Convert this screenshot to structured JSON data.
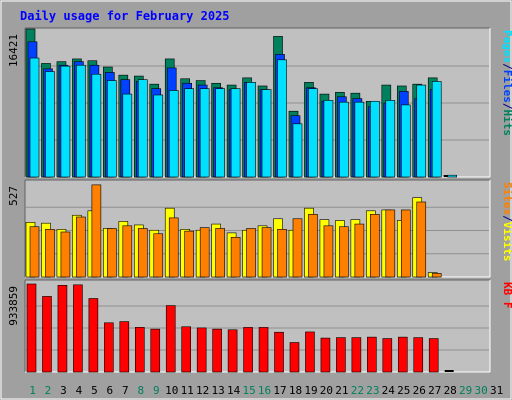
{
  "page": {
    "title": "Daily usage for February 2025"
  },
  "colors": {
    "frame": "#a0a0a0",
    "panel": "#c0c0c0",
    "hits": "#00805c",
    "files": "#0040ff",
    "pages": "#00e0ff",
    "visits": "#ffff00",
    "sites": "#ff8000",
    "kbytes": "#ff0000",
    "title_text": "#0000ff",
    "weekday_label": "#000080",
    "weekend_label": "#00805c"
  },
  "chart_data": [
    {
      "type": "bar",
      "panel": "top",
      "ymax_label": "16421",
      "side_label_parts": [
        {
          "text": "Pages",
          "color_key": "pages"
        },
        {
          "text": "/",
          "color_key": "weekday_label"
        },
        {
          "text": "Files",
          "color_key": "files"
        },
        {
          "text": "/",
          "color_key": "weekday_label"
        },
        {
          "text": "Hits",
          "color_key": "hits"
        }
      ],
      "ylim": [
        0,
        16421
      ],
      "series": [
        {
          "name": "Hits",
          "color_key": "hits",
          "values": [
            16421,
            12600,
            12800,
            13100,
            12900,
            12200,
            11300,
            11200,
            10300,
            13100,
            10900,
            10700,
            10400,
            10200,
            11000,
            10100,
            15600,
            7300,
            10500,
            9200,
            9400,
            9300,
            8400,
            10200,
            10100,
            10300,
            11000,
            0
          ]
        },
        {
          "name": "Files",
          "color_key": "files",
          "values": [
            15000,
            12000,
            12400,
            12800,
            12400,
            11600,
            10800,
            10600,
            9800,
            12100,
            10400,
            10200,
            9900,
            9700,
            10500,
            9700,
            13600,
            6800,
            9900,
            8400,
            8900,
            8700,
            7800,
            8200,
            9500,
            8700,
            9700,
            0
          ]
        },
        {
          "name": "Pages",
          "color_key": "pages",
          "values": [
            13200,
            11700,
            12300,
            12400,
            11400,
            10700,
            9200,
            10800,
            9100,
            9600,
            9800,
            9800,
            9800,
            9800,
            10500,
            9700,
            13000,
            5900,
            9800,
            8500,
            8300,
            8300,
            8400,
            8500,
            8000,
            10200,
            10600,
            200
          ]
        }
      ]
    },
    {
      "type": "bar",
      "panel": "middle",
      "ymax_label": "527",
      "side_label_parts": [
        {
          "text": "Sites",
          "color_key": "sites"
        },
        {
          "text": "/",
          "color_key": "weekday_label"
        },
        {
          "text": "Visits",
          "color_key": "visits"
        }
      ],
      "ylim": [
        0,
        527
      ],
      "series": [
        {
          "name": "Visits",
          "color_key": "visits",
          "values": [
            310,
            305,
            270,
            350,
            375,
            275,
            315,
            295,
            265,
            390,
            270,
            265,
            300,
            250,
            265,
            290,
            330,
            265,
            390,
            325,
            320,
            325,
            375,
            380,
            320,
            450,
            25
          ]
        },
        {
          "name": "Sites",
          "color_key": "sites",
          "values": [
            285,
            270,
            255,
            340,
            522,
            275,
            290,
            275,
            245,
            335,
            260,
            280,
            275,
            225,
            275,
            280,
            270,
            330,
            355,
            290,
            285,
            300,
            355,
            380,
            380,
            425,
            20
          ]
        }
      ]
    },
    {
      "type": "bar",
      "panel": "bottom",
      "ymax_label": "933859",
      "side_label_parts": [
        {
          "text": "KB F",
          "color_key": "kbytes"
        }
      ],
      "ylim": [
        0,
        933859
      ],
      "series": [
        {
          "name": "KB F",
          "color_key": "kbytes",
          "values": [
            933859,
            802000,
            920000,
            925000,
            780000,
            522000,
            535000,
            474000,
            455000,
            705000,
            480000,
            468000,
            455000,
            448000,
            473000,
            473000,
            422000,
            313000,
            425000,
            360000,
            365000,
            365000,
            370000,
            355000,
            370000,
            365000,
            355000,
            0
          ]
        }
      ]
    }
  ],
  "x_axis": {
    "labels": [
      "1",
      "2",
      "3",
      "4",
      "5",
      "6",
      "7",
      "8",
      "9",
      "10",
      "11",
      "12",
      "13",
      "14",
      "15",
      "16",
      "17",
      "18",
      "19",
      "20",
      "21",
      "22",
      "23",
      "24",
      "25",
      "26",
      "27",
      "28",
      "29",
      "30",
      "31"
    ],
    "weekend_days": [
      "1",
      "2",
      "8",
      "9",
      "15",
      "16",
      "22",
      "23",
      "29",
      "30"
    ]
  }
}
